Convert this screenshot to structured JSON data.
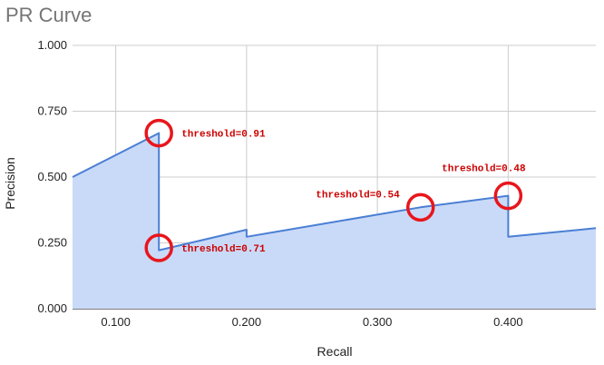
{
  "chart_data": {
    "type": "area",
    "title": "PR Curve",
    "xlabel": "Recall",
    "ylabel": "Precision",
    "xlim": [
      0.067,
      0.467
    ],
    "ylim": [
      0,
      1.0
    ],
    "x_ticks": [
      0.1,
      0.2,
      0.3,
      0.4
    ],
    "x_tick_labels": [
      "0.100",
      "0.200",
      "0.300",
      "0.400"
    ],
    "y_ticks": [
      0,
      0.25,
      0.5,
      0.75,
      1.0
    ],
    "y_tick_labels": [
      "0.000",
      "0.250",
      "0.500",
      "0.750",
      "1.000"
    ],
    "grid": true,
    "legend": "none",
    "series": [
      {
        "color": "#4a7fd4",
        "fill": "#c9daf8",
        "x": [
          0.067,
          0.133,
          0.133,
          0.2,
          0.2,
          0.333,
          0.4,
          0.4,
          0.467
        ],
        "y": [
          0.5,
          0.667,
          0.222,
          0.3,
          0.273,
          0.385,
          0.429,
          0.273,
          0.306
        ]
      }
    ],
    "annotations": [
      {
        "text": "threshold=0.91",
        "x": 0.133,
        "y": 0.667,
        "label_side": "right"
      },
      {
        "text": "threshold=0.71",
        "x": 0.133,
        "y": 0.231,
        "label_side": "right"
      },
      {
        "text": "threshold=0.54",
        "x": 0.333,
        "y": 0.385,
        "label_side": "left-above"
      },
      {
        "text": "threshold=0.48",
        "x": 0.4,
        "y": 0.429,
        "label_side": "above"
      }
    ],
    "marker_color": "#e8161c"
  }
}
